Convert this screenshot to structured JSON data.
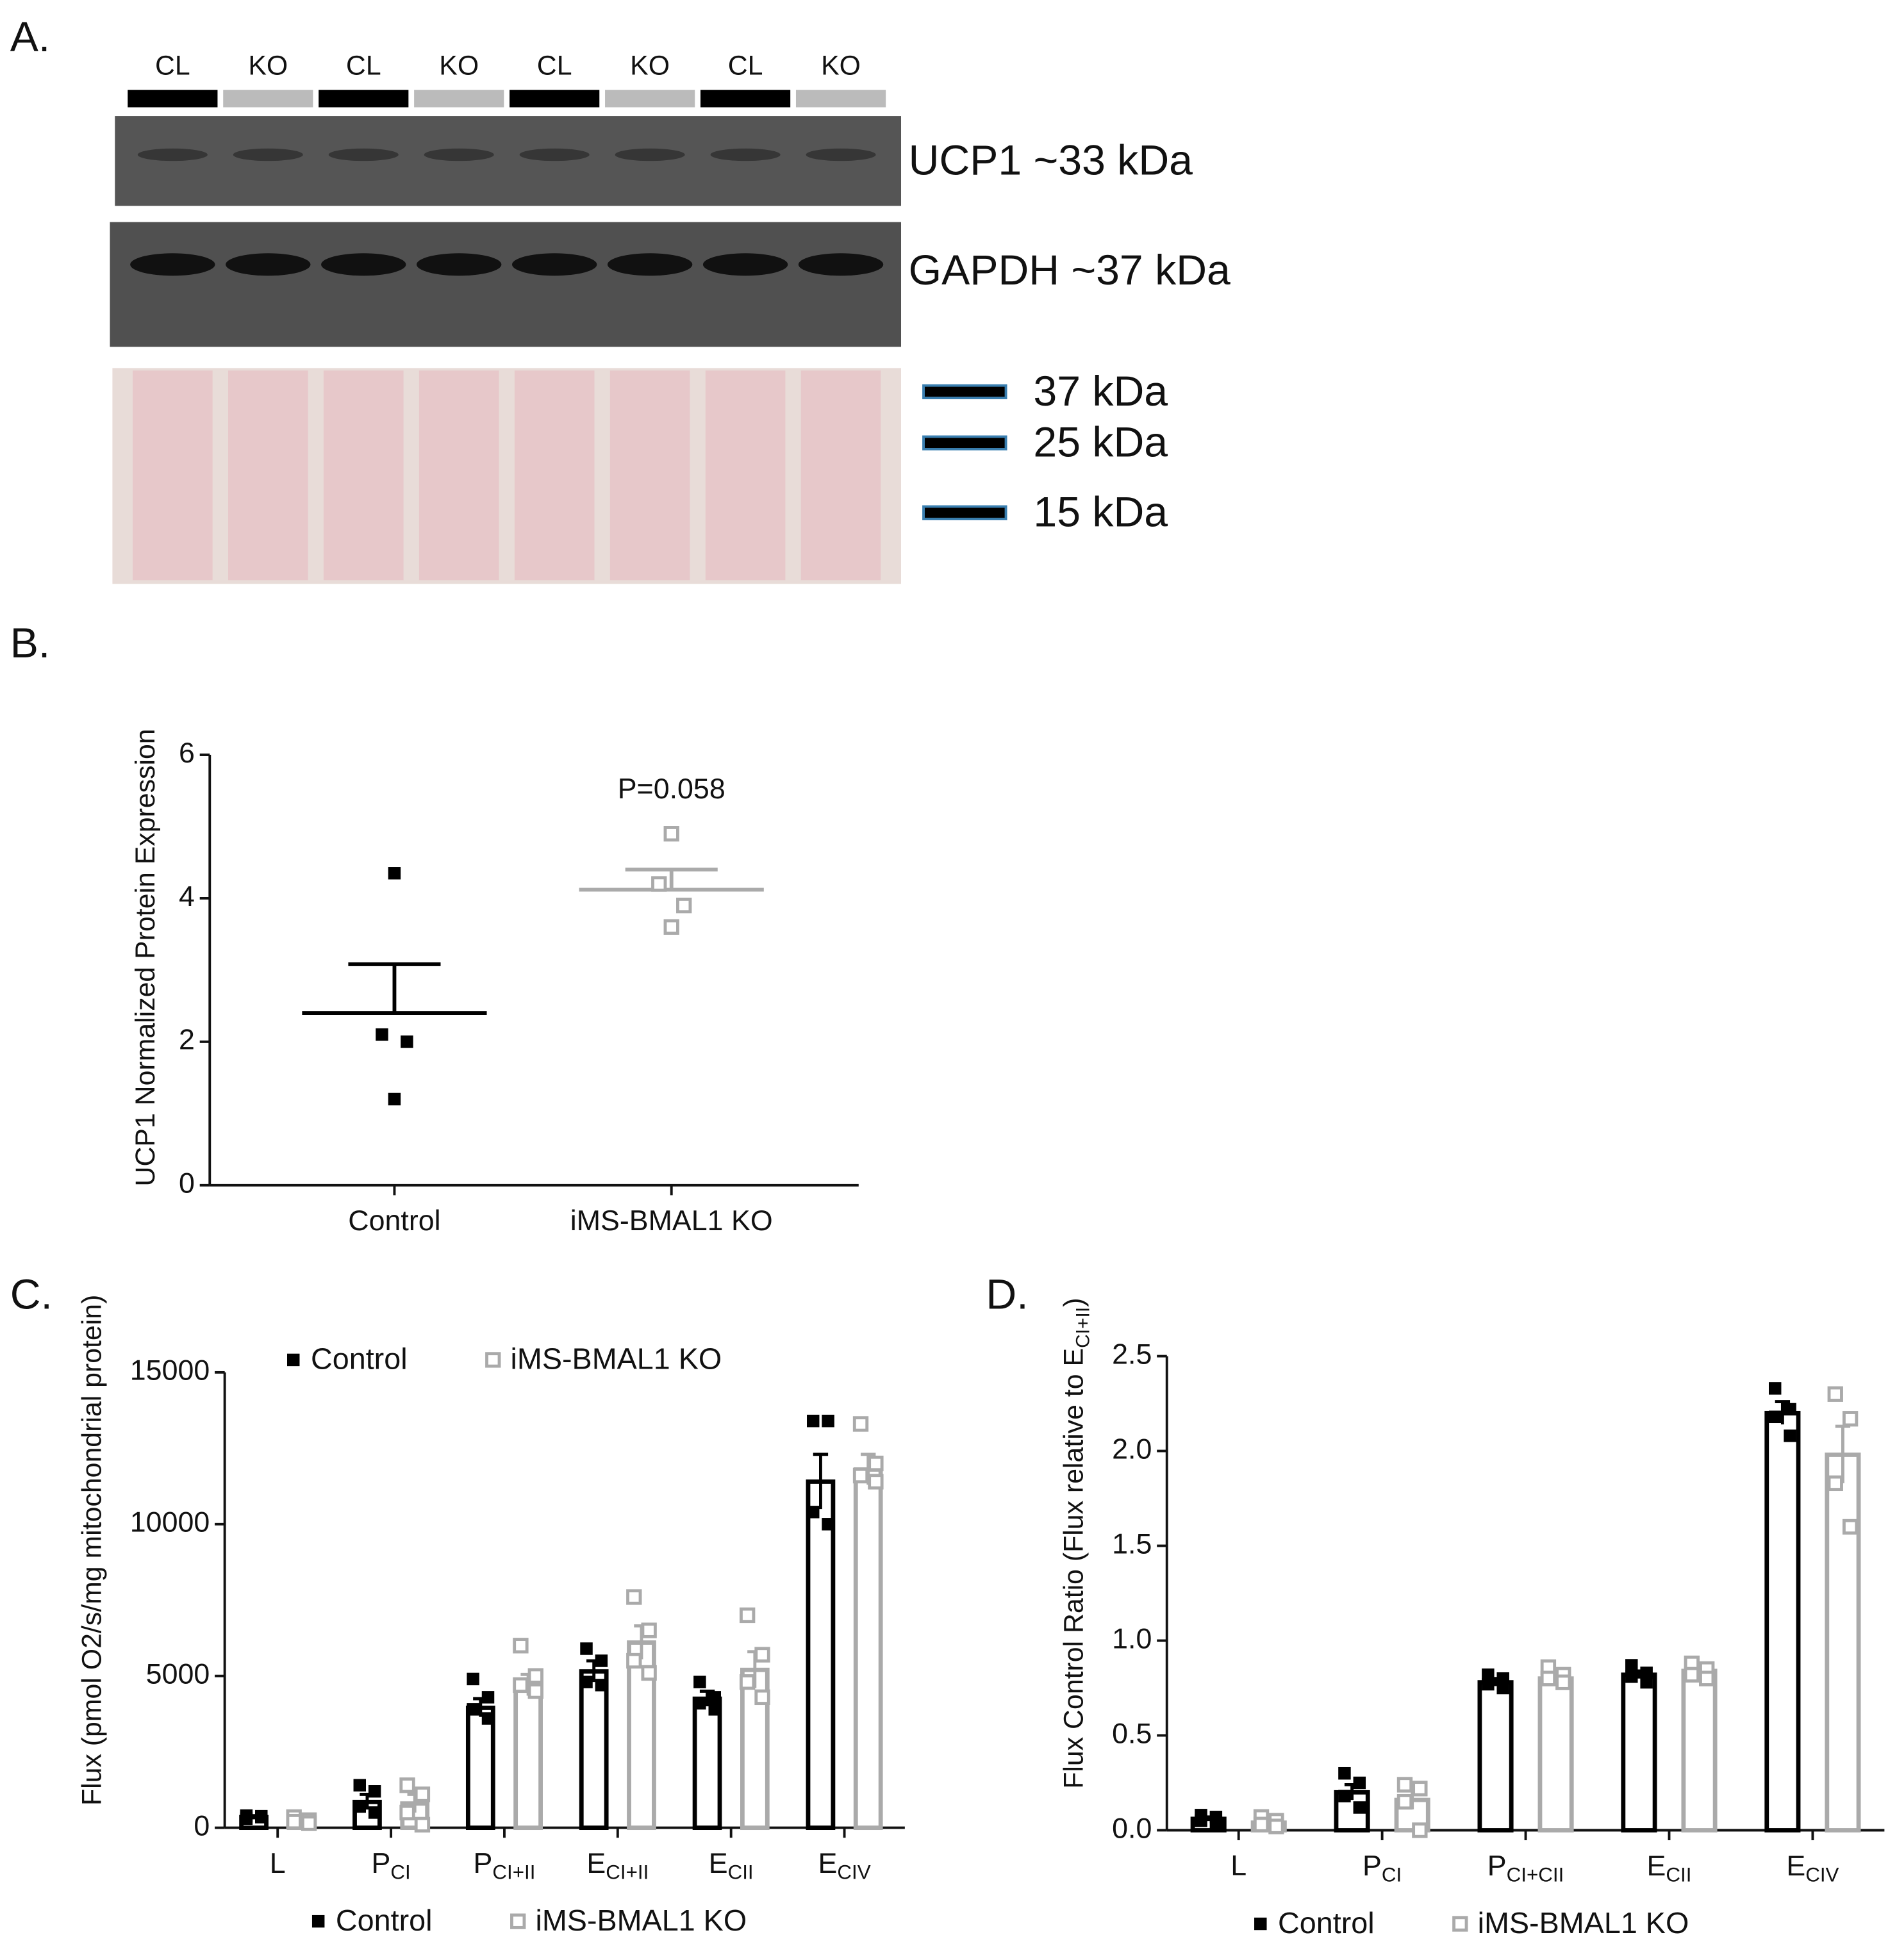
{
  "panels": [
    "A.",
    "B.",
    "C.",
    "D."
  ],
  "blot": {
    "lanes": [
      "CL",
      "KO",
      "CL",
      "KO",
      "CL",
      "KO",
      "CL",
      "KO"
    ],
    "bands": [
      "UCP1 ~33 kDa",
      "GAPDH ~37 kDa"
    ],
    "markers": [
      "37 kDa",
      "25 kDa",
      "15 kDa"
    ]
  },
  "chart_data": [
    {
      "type": "dotplot",
      "categories": [
        "Control",
        "iMS-BMAL1 KO"
      ],
      "points": [
        [
          4.35,
          2.1,
          2.0,
          1.2
        ],
        [
          4.9,
          4.2,
          3.9,
          3.6
        ]
      ],
      "means": [
        2.4,
        4.12
      ],
      "errors": [
        0.68,
        0.28
      ],
      "colors": [
        "#000000",
        "#aaaaaa"
      ],
      "markers": [
        "filled",
        "open"
      ],
      "ylabel": "UCP1 Normalized Protein Expression",
      "annotation": "P=0.058",
      "ylim": [
        0,
        6
      ],
      "yticks": [
        0,
        2,
        4,
        6
      ]
    },
    {
      "type": "bar",
      "categories": [
        "L",
        {
          "text": "P",
          "sub": "CI"
        },
        {
          "text": "P",
          "sub": "CI+II"
        },
        {
          "text": "E",
          "sub": "CI+II"
        },
        {
          "text": "E",
          "sub": "CII"
        },
        {
          "text": "E",
          "sub": "CIV"
        }
      ],
      "series": [
        {
          "name": "Control",
          "color": "#000000",
          "marker": "filled",
          "values": [
            350,
            850,
            3950,
            5150,
            4250,
            11400
          ],
          "errors": [
            50,
            250,
            300,
            350,
            250,
            900
          ],
          "points": [
            [
              400,
              350,
              300,
              380
            ],
            [
              1400,
              1200,
              700,
              500
            ],
            [
              4900,
              4300,
              3900,
              3600
            ],
            [
              5900,
              5500,
              4800,
              4700
            ],
            [
              4800,
              4300,
              4100,
              3900
            ],
            [
              13400,
              13400,
              10400,
              10000
            ]
          ]
        },
        {
          "name": "iMS-BMAL1 KO",
          "color": "#aaaaaa",
          "marker": "open",
          "values": [
            250,
            800,
            4700,
            6100,
            5200,
            11800
          ],
          "errors": [
            50,
            300,
            350,
            550,
            600,
            500
          ],
          "points": [
            [
              350,
              250,
              200,
              150
            ],
            [
              1400,
              1100,
              500,
              100
            ],
            [
              6000,
              5000,
              4700,
              4500
            ],
            [
              7600,
              6500,
              5500,
              5100
            ],
            [
              7000,
              5700,
              4800,
              4300
            ],
            [
              13300,
              12000,
              11600,
              11400
            ]
          ]
        }
      ],
      "ylabel": "Flux (pmol O2/s/mg mitochondrial protein)",
      "ylim": [
        0,
        15000
      ],
      "yticks": [
        0,
        5000,
        10000,
        15000
      ],
      "legend_positions": [
        "top",
        "bottom"
      ]
    },
    {
      "type": "bar",
      "categories": [
        "L",
        {
          "text": "P",
          "sub": "CI"
        },
        {
          "text": "P",
          "sub": "CI+CII"
        },
        {
          "text": "E",
          "sub": "CII"
        },
        {
          "text": "E",
          "sub": "CIV"
        }
      ],
      "series": [
        {
          "name": "Control",
          "color": "#000000",
          "marker": "filled",
          "values": [
            0.06,
            0.2,
            0.78,
            0.82,
            2.2
          ],
          "errors": [
            0.01,
            0.04,
            0.02,
            0.02,
            0.06
          ],
          "points": [
            [
              0.08,
              0.07,
              0.05,
              0.04
            ],
            [
              0.3,
              0.25,
              0.18,
              0.12
            ],
            [
              0.82,
              0.8,
              0.77,
              0.75
            ],
            [
              0.87,
              0.83,
              0.81,
              0.78
            ],
            [
              2.33,
              2.22,
              2.18,
              2.08
            ]
          ]
        },
        {
          "name": "iMS-BMAL1 KO",
          "color": "#aaaaaa",
          "marker": "open",
          "values": [
            0.04,
            0.16,
            0.8,
            0.84,
            1.98
          ],
          "errors": [
            0.01,
            0.05,
            0.03,
            0.02,
            0.15
          ],
          "points": [
            [
              0.07,
              0.05,
              0.03,
              0.02
            ],
            [
              0.24,
              0.22,
              0.15,
              0.0
            ],
            [
              0.86,
              0.82,
              0.8,
              0.78
            ],
            [
              0.88,
              0.85,
              0.82,
              0.8
            ],
            [
              2.3,
              2.17,
              1.83,
              1.6
            ]
          ]
        }
      ],
      "ylabel": {
        "text": "Flux Control Ratio (Flux relative to E",
        "sub": "CI+II",
        "tail": ")"
      },
      "ylim": [
        0,
        2.5
      ],
      "yticks": [
        {
          "value": 0,
          "label": "0.0"
        },
        0.5,
        {
          "value": 1,
          "label": "1.0"
        },
        1.5,
        {
          "value": 2,
          "label": "2.0"
        },
        2.5
      ],
      "legend_positions": [
        "bottom"
      ]
    }
  ]
}
